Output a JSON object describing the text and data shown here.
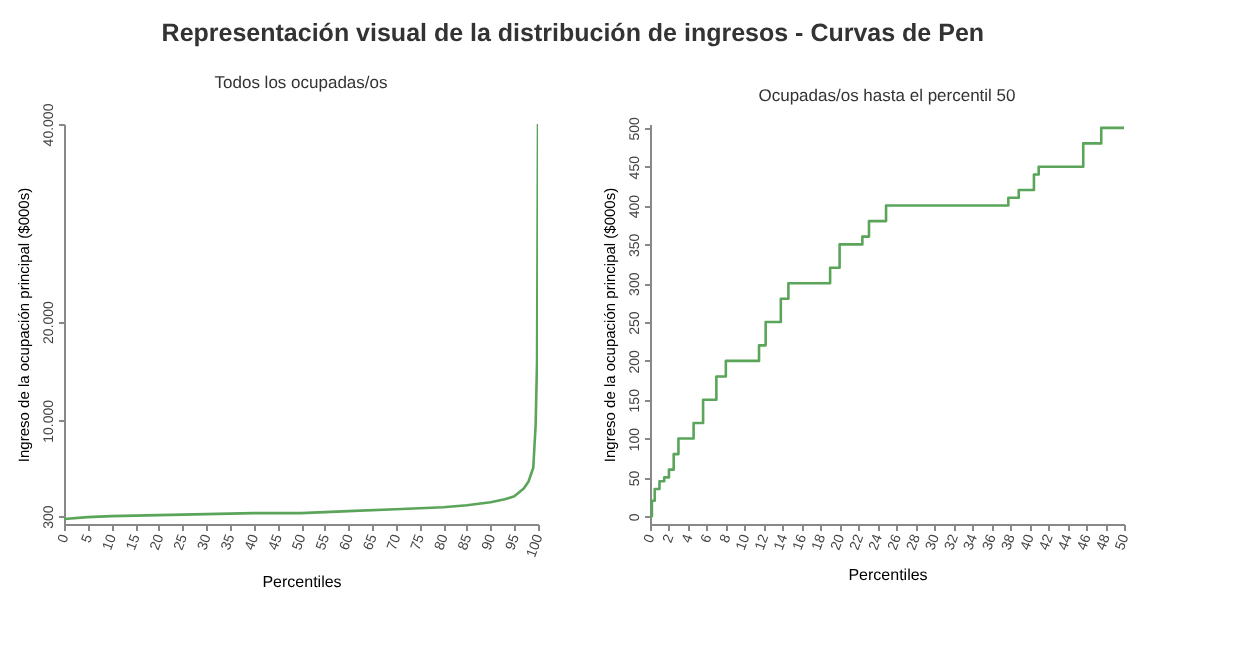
{
  "chart_data": [
    {
      "type": "line",
      "title": "Representación visual de la distribución de ingresos - Curvas de Pen",
      "subtitle": "Todos los ocupadas/os",
      "xlabel": "Percentiles",
      "ylabel": "Ingreso de la ocupación principal ($000s)",
      "x": [
        0,
        5,
        10,
        20,
        30,
        40,
        50,
        60,
        70,
        80,
        85,
        90,
        93,
        95,
        97,
        98,
        99,
        99.5,
        99.8,
        100
      ],
      "series": [
        {
          "color": "#5aa55a",
          "values": [
            0,
            200,
            300,
            400,
            500,
            600,
            600,
            800,
            1000,
            1200,
            1400,
            1700,
            2000,
            2300,
            3100,
            3800,
            5200,
            9500,
            16000,
            40000
          ]
        }
      ],
      "xlim": [
        0,
        100
      ],
      "xticks": [
        0,
        5,
        10,
        15,
        20,
        25,
        30,
        35,
        40,
        45,
        50,
        55,
        60,
        65,
        70,
        75,
        80,
        85,
        90,
        95,
        100
      ],
      "ylim": [
        -500,
        40000
      ],
      "yticks": [
        300,
        {
          "value": 10000,
          "label": "10.000"
        },
        {
          "value": 20000,
          "label": "20.000"
        },
        {
          "value": 40000,
          "label": "40.000"
        }
      ],
      "grid": false
    },
    {
      "type": "step",
      "title": "Ocupadas/os hasta el percentil 50",
      "xlabel": "Percentiles",
      "ylabel": "Ingreso de la ocupación principal ($000s)",
      "x": [
        0,
        0.2,
        0.5,
        1,
        1.5,
        2,
        2.5,
        3,
        4.6,
        5.6,
        7,
        8,
        11.5,
        12.2,
        13.8,
        14.6,
        19,
        20,
        22.4,
        23.1,
        24.9,
        37.8,
        38.9,
        40.5,
        41,
        45.7,
        46.4,
        47.6,
        50
      ],
      "series": [
        {
          "color": "#5aa55a",
          "values": [
            0,
            20,
            35,
            45,
            50,
            60,
            80,
            100,
            120,
            150,
            180,
            200,
            220,
            250,
            280,
            300,
            320,
            350,
            360,
            380,
            400,
            410,
            420,
            440,
            450,
            480,
            480,
            500,
            500
          ]
        }
      ],
      "xlim": [
        0,
        50
      ],
      "xticks": [
        0,
        2,
        4,
        6,
        8,
        10,
        12,
        14,
        16,
        18,
        20,
        22,
        24,
        26,
        28,
        30,
        32,
        34,
        36,
        38,
        40,
        42,
        44,
        46,
        48,
        50
      ],
      "ylim": [
        -10,
        505
      ],
      "yticks": [
        0,
        50,
        100,
        150,
        200,
        250,
        300,
        350,
        400,
        450,
        500
      ],
      "grid": false
    }
  ]
}
